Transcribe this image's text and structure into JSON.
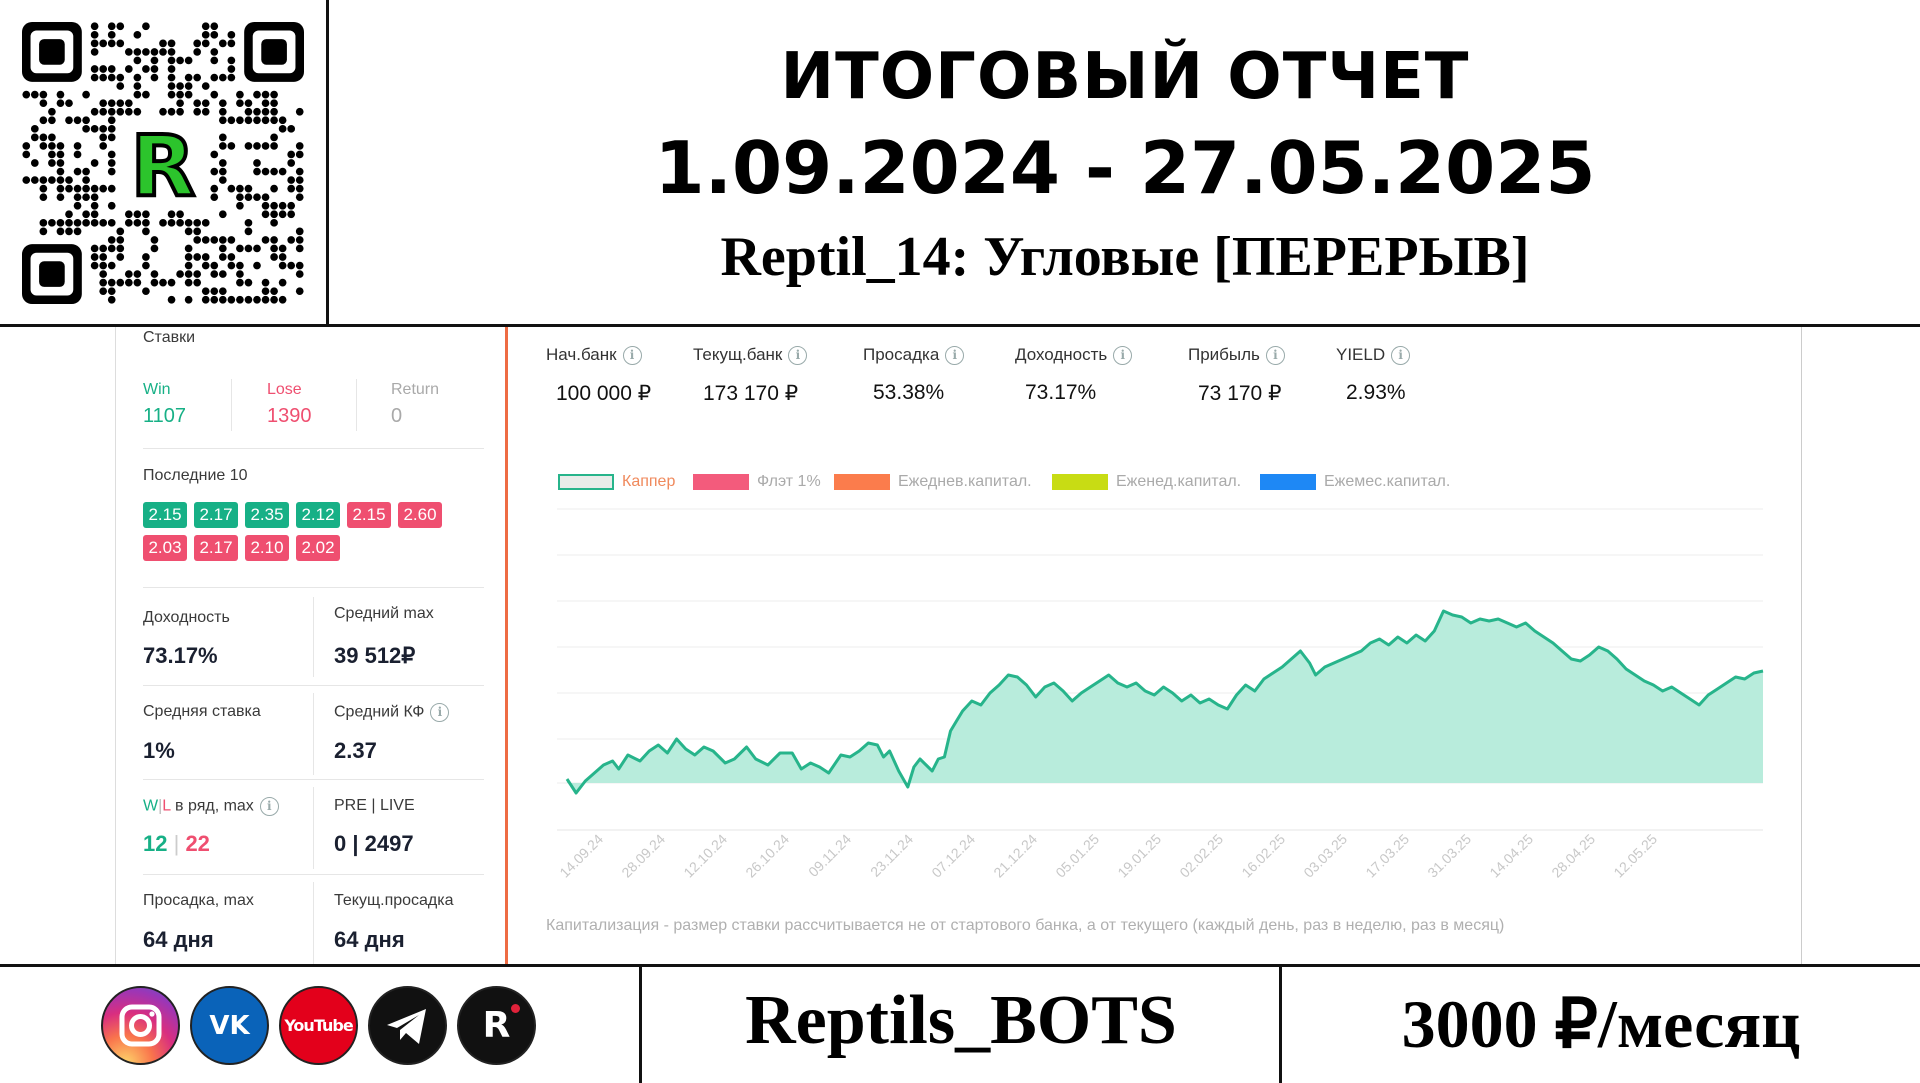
{
  "header": {
    "title": "ИТОГОВЫЙ ОТЧЕТ",
    "dates": "1.09.2024 - 27.05.2025",
    "subtitle": "Reptil_14: Угловые [ПЕРЕРЫВ]",
    "qr_logo_letter": "R"
  },
  "left_panel": {
    "section_title": "Ставки",
    "win": {
      "label": "Win",
      "value": "1107"
    },
    "lose": {
      "label": "Lose",
      "value": "1390"
    },
    "ret": {
      "label": "Return",
      "value": "0"
    },
    "last10_title": "Последние 10",
    "last10": [
      {
        "v": "2.15",
        "r": "win"
      },
      {
        "v": "2.17",
        "r": "win"
      },
      {
        "v": "2.35",
        "r": "win"
      },
      {
        "v": "2.12",
        "r": "win"
      },
      {
        "v": "2.15",
        "r": "lose"
      },
      {
        "v": "2.60",
        "r": "lose"
      },
      {
        "v": "2.03",
        "r": "lose"
      },
      {
        "v": "2.17",
        "r": "lose"
      },
      {
        "v": "2.10",
        "r": "lose"
      },
      {
        "v": "2.02",
        "r": "lose"
      }
    ],
    "yield_label": "Доходность",
    "yield_value": "73.17%",
    "avg_max_label": "Средний max",
    "avg_max_value": "39 512₽",
    "avg_stake_label": "Средняя ставка",
    "avg_stake_value": "1%",
    "avg_kf_label": "Средний КФ",
    "avg_kf_value": "2.37",
    "wl_label_w": "W",
    "wl_label_sep": "|",
    "wl_label_l": "L",
    "wl_label_rest": " в ряд, max",
    "wl_w": "12",
    "wl_sep": " | ",
    "wl_l": "22",
    "pre_live_label": "PRE | LIVE",
    "pre_live_value": "0 | 2497",
    "dd_max_label": "Просадка, max",
    "dd_max_value": "64 дня",
    "dd_cur_label": "Текущ.просадка",
    "dd_cur_value": "64 дня"
  },
  "stats": [
    {
      "label": "Нач.банк",
      "value": "100 000 ₽"
    },
    {
      "label": "Текущ.банк",
      "value": "173 170 ₽"
    },
    {
      "label": "Просадка",
      "value": "53.38%"
    },
    {
      "label": "Доходность",
      "value": "73.17%"
    },
    {
      "label": "Прибыль",
      "value": "73 170 ₽"
    },
    {
      "label": "YIELD",
      "value": "2.93%"
    }
  ],
  "legend": [
    {
      "label": "Каппер",
      "color": "#e8ece9",
      "border": "#27b48b",
      "text_color": "#f08a5d"
    },
    {
      "label": "Флэт 1%",
      "color": "#f35b7c"
    },
    {
      "label": "Ежеднев.капитал.",
      "color": "#fb7c4c"
    },
    {
      "label": "Еженед.капитал.",
      "color": "#c8dc14"
    },
    {
      "label": "Ежемес.капитал.",
      "color": "#1e88f5"
    }
  ],
  "note": "Капитализация - размер ставки рассчитывается не от стартового банка, а от текущего (каждый день, раз в неделю, раз в месяц)",
  "chart_data": {
    "type": "area",
    "x_ticks": [
      "14.09.24",
      "28.09.24",
      "12.10.24",
      "26.10.24",
      "09.11.24",
      "23.11.24",
      "07.12.24",
      "21.12.24",
      "05.01.25",
      "19.01.25",
      "02.02.25",
      "16.02.25",
      "03.03.25",
      "17.03.25",
      "31.03.25",
      "14.04.25",
      "28.04.25",
      "12.05.25"
    ],
    "series": [
      {
        "color": "#27b48b",
        "fill": "#b8ecdc",
        "points": [
          [
            0,
            0.02
          ],
          [
            3,
            -0.05
          ],
          [
            6,
            0.01
          ],
          [
            9,
            0.05
          ],
          [
            12,
            0.09
          ],
          [
            15,
            0.11
          ],
          [
            17,
            0.07
          ],
          [
            20,
            0.14
          ],
          [
            24,
            0.11
          ],
          [
            27,
            0.16
          ],
          [
            30,
            0.19
          ],
          [
            33,
            0.15
          ],
          [
            36,
            0.22
          ],
          [
            39,
            0.17
          ],
          [
            42,
            0.14
          ],
          [
            45,
            0.18
          ],
          [
            48,
            0.16
          ],
          [
            52,
            0.1
          ],
          [
            55,
            0.12
          ],
          [
            59,
            0.18
          ],
          [
            62,
            0.12
          ],
          [
            66,
            0.09
          ],
          [
            70,
            0.15
          ],
          [
            74,
            0.15
          ],
          [
            77,
            0.07
          ],
          [
            80,
            0.1
          ],
          [
            83,
            0.08
          ],
          [
            86,
            0.05
          ],
          [
            90,
            0.14
          ],
          [
            93,
            0.13
          ],
          [
            96,
            0.16
          ],
          [
            99,
            0.2
          ],
          [
            102,
            0.19
          ],
          [
            104,
            0.13
          ],
          [
            106,
            0.16
          ],
          [
            109,
            0.06
          ],
          [
            112,
            -0.02
          ],
          [
            114,
            0.08
          ],
          [
            116,
            0.12
          ],
          [
            118,
            0.09
          ],
          [
            120,
            0.06
          ],
          [
            122,
            0.12
          ],
          [
            124,
            0.13
          ],
          [
            126,
            0.26
          ],
          [
            128,
            0.31
          ],
          [
            130,
            0.36
          ],
          [
            133,
            0.41
          ],
          [
            136,
            0.39
          ],
          [
            139,
            0.45
          ],
          [
            142,
            0.49
          ],
          [
            145,
            0.54
          ],
          [
            148,
            0.53
          ],
          [
            151,
            0.49
          ],
          [
            154,
            0.43
          ],
          [
            157,
            0.48
          ],
          [
            160,
            0.5
          ],
          [
            163,
            0.46
          ],
          [
            166,
            0.41
          ],
          [
            169,
            0.45
          ],
          [
            172,
            0.48
          ],
          [
            175,
            0.51
          ],
          [
            178,
            0.54
          ],
          [
            181,
            0.5
          ],
          [
            184,
            0.48
          ],
          [
            187,
            0.5
          ],
          [
            190,
            0.46
          ],
          [
            193,
            0.44
          ],
          [
            196,
            0.48
          ],
          [
            199,
            0.45
          ],
          [
            202,
            0.41
          ],
          [
            205,
            0.44
          ],
          [
            208,
            0.4
          ],
          [
            211,
            0.42
          ],
          [
            214,
            0.39
          ],
          [
            217,
            0.37
          ],
          [
            220,
            0.44
          ],
          [
            223,
            0.49
          ],
          [
            226,
            0.46
          ],
          [
            229,
            0.52
          ],
          [
            232,
            0.55
          ],
          [
            235,
            0.58
          ],
          [
            238,
            0.62
          ],
          [
            241,
            0.66
          ],
          [
            244,
            0.6
          ],
          [
            246,
            0.54
          ],
          [
            249,
            0.58
          ],
          [
            252,
            0.6
          ],
          [
            255,
            0.62
          ],
          [
            258,
            0.64
          ],
          [
            261,
            0.66
          ],
          [
            264,
            0.7
          ],
          [
            267,
            0.72
          ],
          [
            270,
            0.69
          ],
          [
            273,
            0.73
          ],
          [
            276,
            0.7
          ],
          [
            279,
            0.74
          ],
          [
            282,
            0.71
          ],
          [
            285,
            0.76
          ],
          [
            288,
            0.86
          ],
          [
            291,
            0.84
          ],
          [
            294,
            0.83
          ],
          [
            297,
            0.8
          ],
          [
            300,
            0.82
          ],
          [
            303,
            0.81
          ],
          [
            306,
            0.82
          ],
          [
            309,
            0.8
          ],
          [
            312,
            0.78
          ],
          [
            315,
            0.8
          ],
          [
            318,
            0.76
          ],
          [
            321,
            0.73
          ],
          [
            324,
            0.7
          ],
          [
            327,
            0.66
          ],
          [
            330,
            0.62
          ],
          [
            333,
            0.61
          ],
          [
            336,
            0.64
          ],
          [
            339,
            0.68
          ],
          [
            342,
            0.66
          ],
          [
            345,
            0.62
          ],
          [
            348,
            0.57
          ],
          [
            351,
            0.54
          ],
          [
            354,
            0.51
          ],
          [
            357,
            0.49
          ],
          [
            360,
            0.46
          ],
          [
            363,
            0.48
          ],
          [
            366,
            0.45
          ],
          [
            369,
            0.42
          ],
          [
            372,
            0.39
          ],
          [
            375,
            0.44
          ],
          [
            378,
            0.47
          ],
          [
            381,
            0.5
          ],
          [
            384,
            0.53
          ],
          [
            387,
            0.52
          ],
          [
            390,
            0.55
          ],
          [
            393,
            0.56
          ]
        ]
      }
    ],
    "y_gridlines": 6
  },
  "footer": {
    "bots": "Reptils_BOTS",
    "price": "3000 ₽/месяц",
    "socials": [
      {
        "name": "instagram-icon",
        "text": ""
      },
      {
        "name": "vk-icon",
        "text": "VK"
      },
      {
        "name": "youtube-icon",
        "text": "YouTube"
      },
      {
        "name": "telegram-icon",
        "text": ""
      },
      {
        "name": "r-icon",
        "text": "R"
      }
    ]
  }
}
